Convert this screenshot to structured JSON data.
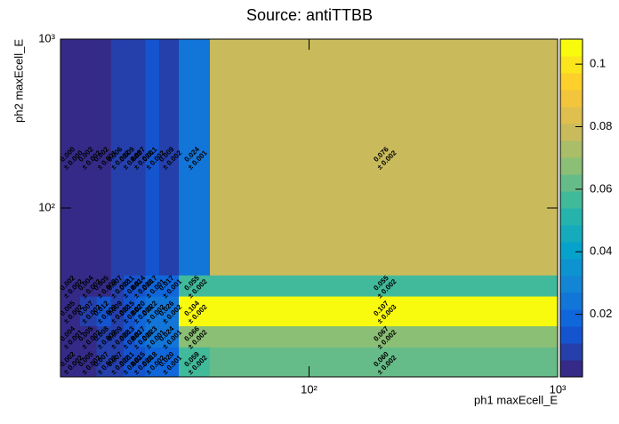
{
  "chart_data": {
    "type": "heatmap",
    "title": "Source: antiTTBB",
    "x_label": "ph1 maxEcell_E",
    "y_label": "ph2 maxEcell_E",
    "log_x": true,
    "log_y": true,
    "xbins": [
      10,
      12,
      14,
      16,
      18,
      20,
      22,
      25,
      30,
      40,
      1000
    ],
    "ybins": [
      10,
      15,
      20,
      30,
      40,
      1000
    ],
    "xlim": [
      10,
      1000
    ],
    "ylim": [
      10,
      1000
    ],
    "xticks": [
      {
        "value": 100,
        "label": "10²"
      },
      {
        "value": 1000,
        "label": "10³"
      }
    ],
    "yticks": [
      {
        "value": 100,
        "label": "10²"
      },
      {
        "value": 1000,
        "label": "10³"
      }
    ],
    "z": [
      [
        0.002,
        0.005,
        0.007,
        0.007,
        0.011,
        0.015,
        0.018,
        0.02,
        0.059,
        0.06
      ],
      [
        0.004,
        0.005,
        0.008,
        0.009,
        0.013,
        0.017,
        0.023,
        0.024,
        0.066,
        0.067
      ],
      [
        0.005,
        0.007,
        0.012,
        0.009,
        0.015,
        0.02,
        0.022,
        0.026,
        0.104,
        0.107
      ],
      [
        0.002,
        0.004,
        0.005,
        0.007,
        0.011,
        0.014,
        0.017,
        0.017,
        0.055,
        0.055
      ],
      [
        0,
        0.002,
        0.002,
        0.006,
        0.009,
        0.007,
        0.011,
        0.009,
        0.024,
        0.076
      ]
    ],
    "z_labels": [
      [
        "0.002",
        "0.005",
        "0.007",
        "0.007",
        "0.011",
        "0.015",
        "0.018",
        "0.020",
        "0.059",
        "0.060"
      ],
      [
        "0.004",
        "0.005",
        "0.008",
        "0.009",
        "0.013",
        "0.017",
        "0.023",
        "0.024",
        "0.066",
        "0.067"
      ],
      [
        "0.005",
        "0.007",
        "0.012",
        "0.009",
        "0.015",
        "0.020",
        "0.022",
        "0.026",
        "0.104",
        "0.107"
      ],
      [
        "0.002",
        "0.004",
        "0.005",
        "0.007",
        "0.011",
        "0.014",
        "0.017",
        "0.017",
        "0.055",
        "0.055"
      ],
      [
        "0.000",
        "0.002",
        "0.002",
        "0.006",
        "0.009",
        "0.007",
        "0.011",
        "0.009",
        "0.024",
        "0.076"
      ]
    ],
    "errors": [
      [
        0.002,
        0.002,
        0.002,
        0.002,
        0.002,
        0.001,
        0.002,
        0.001,
        0.002,
        0.002
      ],
      [
        0.001,
        0.002,
        0.002,
        0.002,
        0.002,
        0.001,
        0.001,
        0.001,
        0.002,
        0.002
      ],
      [
        0.002,
        0.002,
        0.002,
        0.002,
        0.002,
        0.001,
        0.002,
        0.002,
        0.002,
        0.003
      ],
      [
        0.002,
        0.002,
        0.002,
        0.002,
        0.002,
        0.001,
        0.001,
        0.001,
        0.002,
        0.002
      ],
      [
        0,
        0.002,
        0.001,
        0.002,
        0.002,
        0.001,
        0.002,
        0.002,
        0.001,
        0.002
      ]
    ],
    "error_labels": [
      [
        "± 0.002",
        "± 0.002",
        "± 0.002",
        "± 0.002",
        "± 0.002",
        "± 0.001",
        "± 0.002",
        "± 0.001",
        "± 0.002",
        "± 0.002"
      ],
      [
        "± 0.001",
        "± 0.002",
        "± 0.002",
        "± 0.002",
        "± 0.002",
        "± 0.001",
        "± 0.001",
        "± 0.001",
        "± 0.002",
        "± 0.002"
      ],
      [
        "± 0.002",
        "± 0.002",
        "± 0.002",
        "± 0.002",
        "± 0.002",
        "± 0.001",
        "± 0.002",
        "± 0.002",
        "± 0.002",
        "± 0.003"
      ],
      [
        "± 0.002",
        "± 0.002",
        "± 0.002",
        "± 0.002",
        "± 0.002",
        "± 0.001",
        "± 0.001",
        "± 0.001",
        "± 0.002",
        "± 0.002"
      ],
      [
        "± 0.000",
        "± 0.002",
        "± 0.001",
        "± 0.002",
        "± 0.002",
        "± 0.001",
        "± 0.002",
        "± 0.002",
        "± 0.001",
        "± 0.002"
      ]
    ],
    "zlim": [
      0,
      0.108
    ],
    "zticks": [
      0.02,
      0.04,
      0.06,
      0.08,
      0.1
    ],
    "z_levels": 20,
    "palette": [
      "#352a87",
      "#0f5cdd",
      "#1481d6",
      "#06a4ca",
      "#2eb7a4",
      "#87bf77",
      "#d1bb59",
      "#fec832",
      "#f9fb0e"
    ]
  }
}
